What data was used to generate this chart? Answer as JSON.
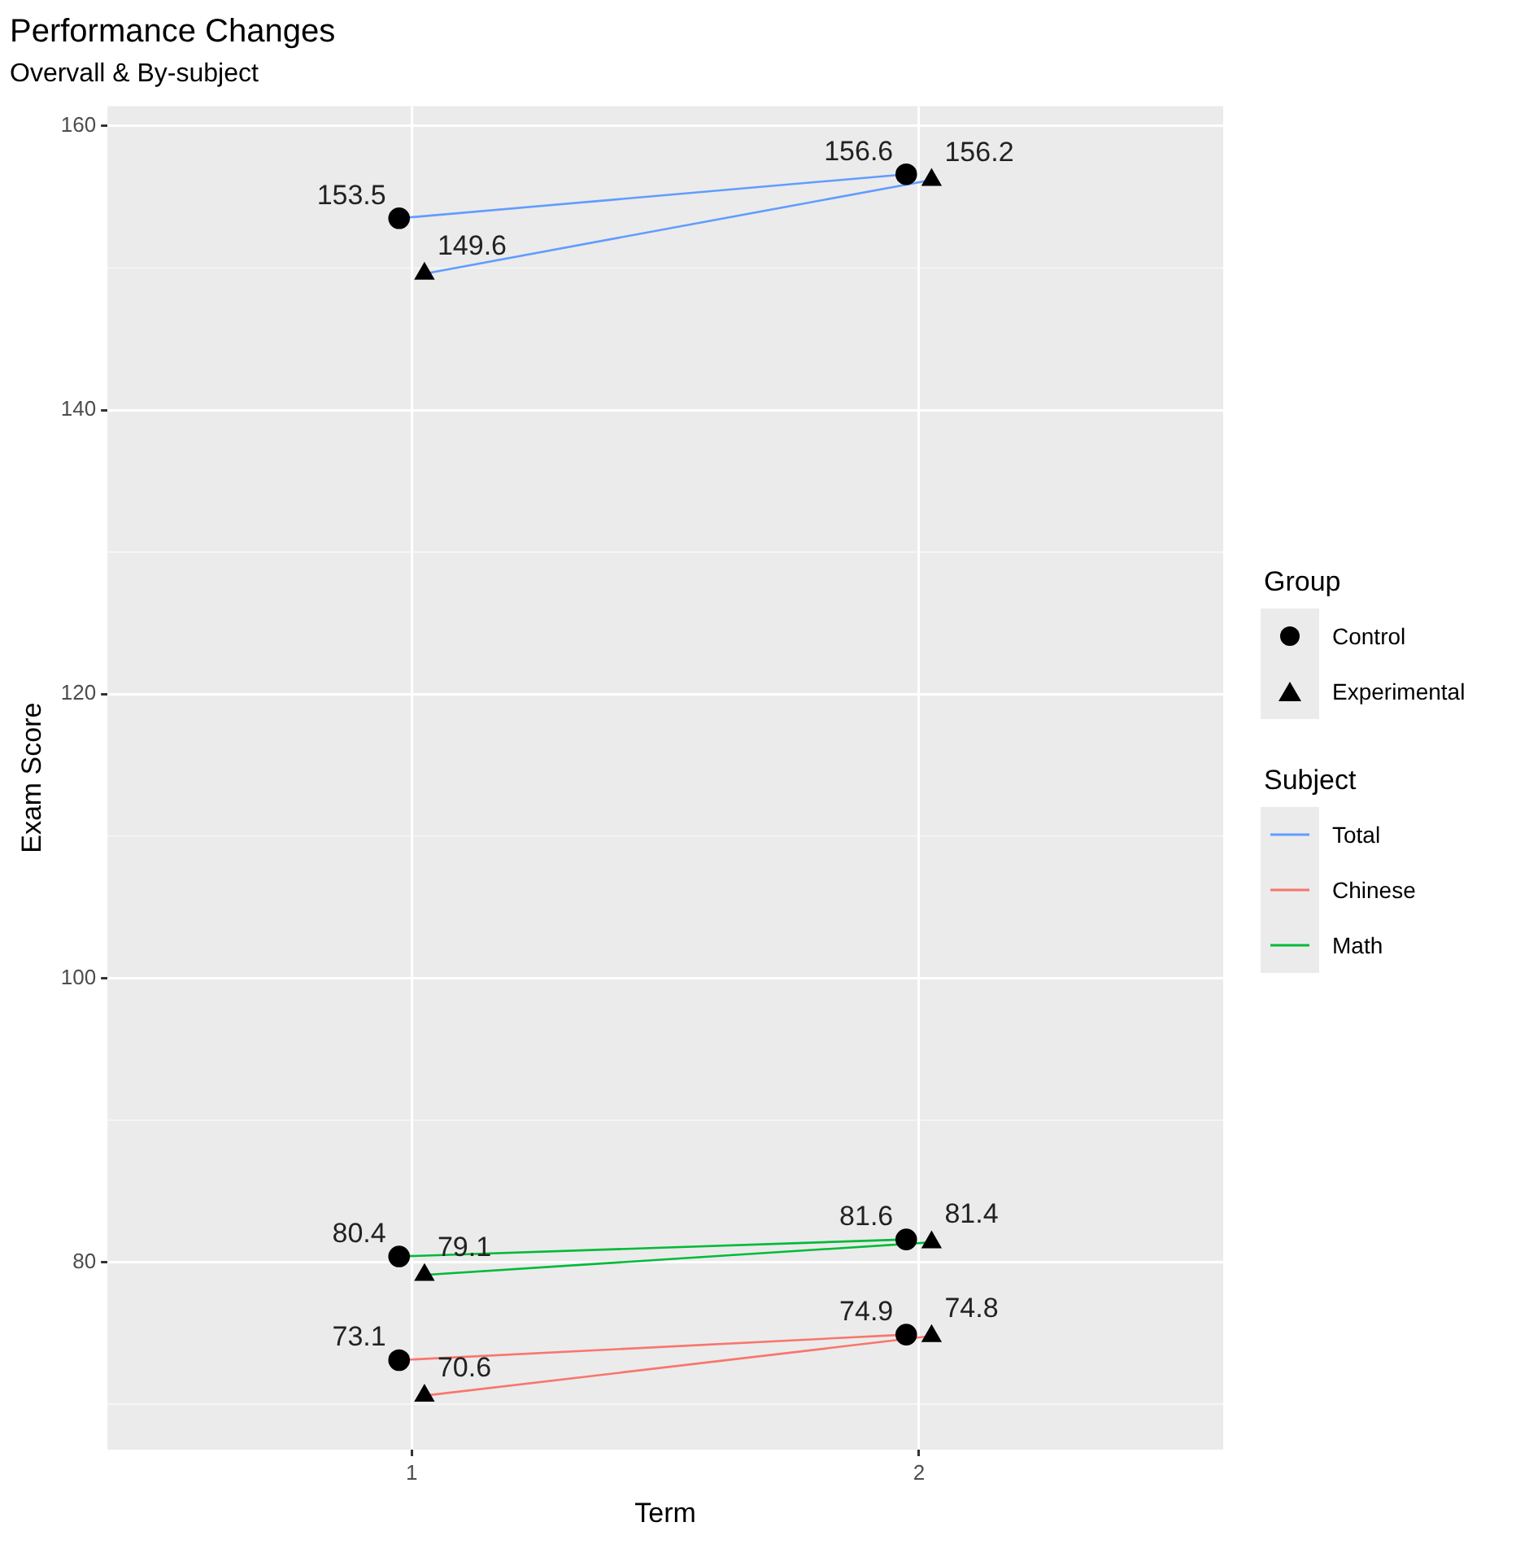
{
  "chart_data": {
    "type": "scatter",
    "title": "Performance Changes",
    "subtitle": "Overvall & By-subject",
    "xlabel": "Term",
    "ylabel": "Exam Score",
    "legend_title": [
      "Group",
      "Subject"
    ],
    "xlim": [
      0.4,
      2.6
    ],
    "xticks": [
      1,
      2
    ],
    "ylim": [
      66.8,
      161.4
    ],
    "yticks": [
      80,
      100,
      120,
      140,
      160
    ],
    "grid": true,
    "legend": "right",
    "line_style": "solid",
    "series": [
      {
        "name": "Control",
        "marker": "circle",
        "color": "#000000",
        "x": [
          0.975,
          1.975,
          0.975,
          1.975,
          0.975,
          1.975
        ],
        "values": [
          153.5,
          156.6,
          73.1,
          74.9,
          80.4,
          81.6
        ],
        "value_labels": [
          "153.5",
          "156.6",
          "73.1",
          "74.9",
          "80.4",
          "81.6"
        ]
      },
      {
        "name": "Experimental",
        "marker": "triangle",
        "color": "#000000",
        "x": [
          1.025,
          2.025,
          1.025,
          2.025,
          1.025,
          2.025
        ],
        "values": [
          149.6,
          156.2,
          70.6,
          74.8,
          79.1,
          81.4
        ],
        "value_labels": [
          "149.6",
          "156.2",
          "70.6",
          "74.8",
          "79.1",
          "81.4"
        ]
      },
      {
        "name": "Total",
        "type": "line",
        "marker": "none",
        "color": "#619cff",
        "x": [
          0.975,
          1.975
        ],
        "values": [
          153.5,
          156.6
        ]
      },
      {
        "type": "line",
        "marker": "none",
        "color": "#619cff",
        "x": [
          1.025,
          2.025
        ],
        "values": [
          149.6,
          156.2
        ]
      },
      {
        "name": "Chinese",
        "type": "line",
        "marker": "none",
        "color": "#f8766d",
        "x": [
          0.975,
          1.975
        ],
        "values": [
          73.1,
          74.9
        ]
      },
      {
        "type": "line",
        "marker": "none",
        "color": "#f8766d",
        "x": [
          1.025,
          2.025
        ],
        "values": [
          70.6,
          74.8
        ]
      },
      {
        "name": "Math",
        "type": "line",
        "marker": "none",
        "color": "#00ba38",
        "x": [
          0.975,
          1.975
        ],
        "values": [
          80.4,
          81.6
        ]
      },
      {
        "type": "line",
        "marker": "none",
        "color": "#00ba38",
        "x": [
          1.025,
          2.025
        ],
        "values": [
          79.1,
          81.4
        ]
      }
    ]
  }
}
